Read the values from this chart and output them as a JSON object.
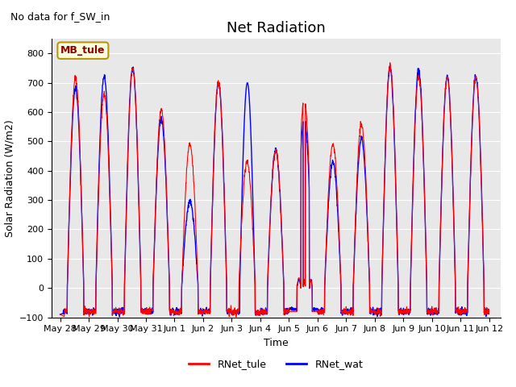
{
  "title": "Net Radiation",
  "xlabel": "Time",
  "ylabel": "Solar Radiation (W/m2)",
  "annotation": "No data for f_SW_in",
  "station_label": "MB_tule",
  "ylim": [
    -100,
    850
  ],
  "line1_label": "RNet_tule",
  "line1_color": "red",
  "line2_label": "RNet_wat",
  "line2_color": "blue",
  "background_color": "#e8e8e8",
  "xtick_labels": [
    "May 28",
    "May 29",
    "May 30",
    "May 31",
    "Jun 1",
    "Jun 2",
    "Jun 3",
    "Jun 4",
    "Jun 5",
    "Jun 6",
    "Jun 7",
    "Jun 8",
    "Jun 9",
    "Jun 10",
    "Jun 11",
    "Jun 12"
  ],
  "xtick_positions": [
    0,
    1,
    2,
    3,
    4,
    5,
    6,
    7,
    8,
    9,
    10,
    11,
    12,
    13,
    14,
    15
  ],
  "ytick_values": [
    -100,
    0,
    100,
    200,
    300,
    400,
    500,
    600,
    700,
    800
  ],
  "title_fontsize": 13,
  "label_fontsize": 9,
  "tick_fontsize": 8
}
